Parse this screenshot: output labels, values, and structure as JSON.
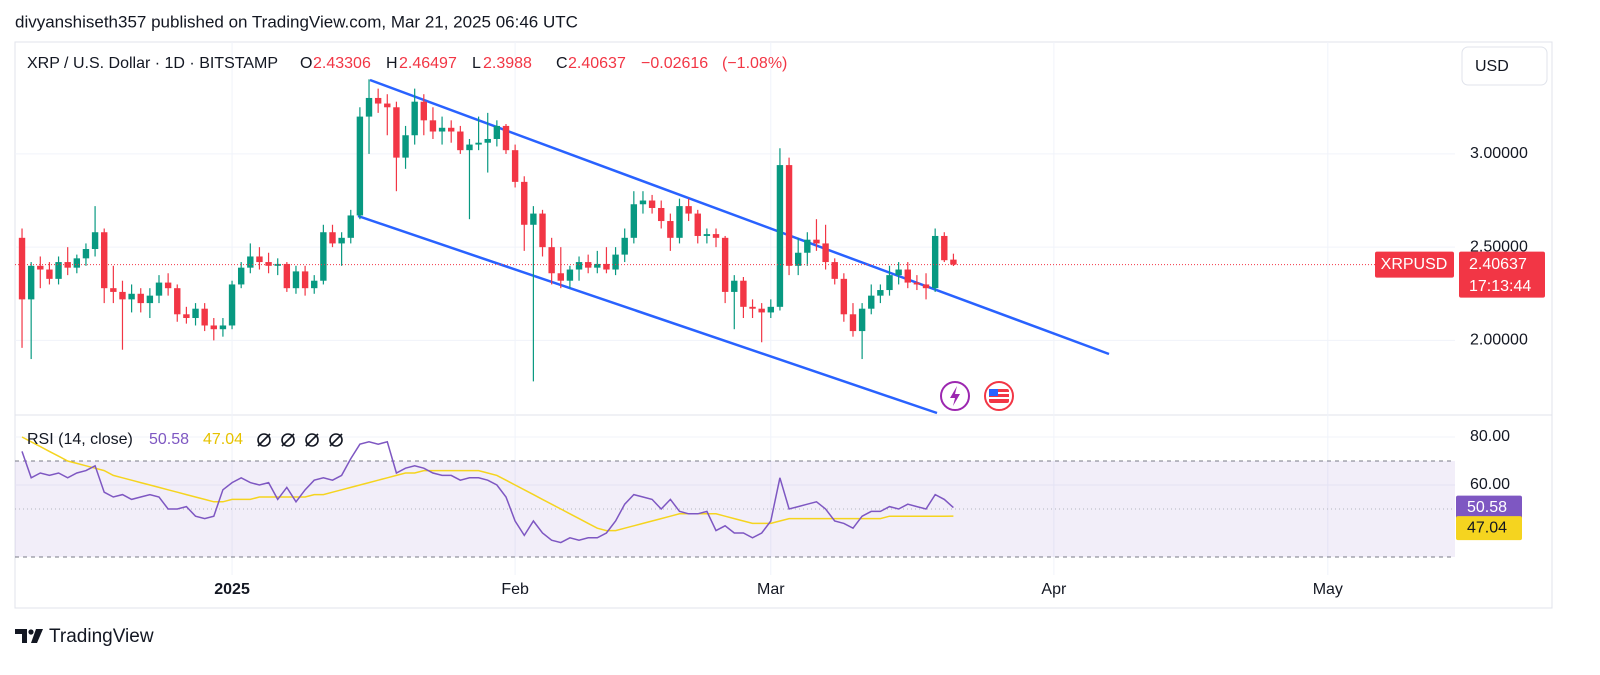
{
  "header": "divyanshiseth357 published on TradingView.com, Mar 21, 2025 06:46 UTC",
  "footer": "TradingView",
  "chart_data": {
    "type": "candlestick",
    "title": "XRP / U.S. Dollar · 1D · BITSTAMP",
    "ohlc_labels": [
      "O",
      "H",
      "L",
      "C"
    ],
    "change": {
      "value": -0.02616,
      "label": "−0.02616"
    },
    "change_percent": {
      "value": -1.08,
      "label": "(−1.08%)"
    },
    "currency": "USD",
    "symbol": "XRPUSD",
    "countdown": "17:13:44",
    "up_color": "#089981",
    "down_color": "#f23645",
    "open": [
      2.55,
      2.22,
      2.4,
      2.38,
      2.33,
      2.42,
      2.39,
      2.44,
      2.49,
      2.58,
      2.28,
      2.26,
      2.22,
      2.25,
      2.2,
      2.24,
      2.31,
      2.28,
      2.14,
      2.12,
      2.17,
      2.08,
      2.06,
      2.08,
      2.3,
      2.39,
      2.45,
      2.42,
      2.4,
      2.41,
      2.28,
      2.37,
      2.28,
      2.32,
      2.58,
      2.52,
      2.55,
      2.67,
      3.2,
      3.3,
      3.27,
      3.25,
      2.98,
      3.1,
      3.28,
      3.18,
      3.12,
      3.14,
      3.12,
      3.02,
      3.05,
      3.06,
      3.08,
      3.15,
      3.02,
      2.85,
      2.62,
      2.68,
      2.5,
      2.36,
      2.32,
      2.38,
      2.42,
      2.39,
      2.41,
      2.38,
      2.46,
      2.55,
      2.73,
      2.75,
      2.71,
      2.64,
      2.55,
      2.72,
      2.68,
      2.56,
      2.57,
      2.55,
      2.26,
      2.32,
      2.18,
      2.17,
      2.15,
      2.18,
      2.94,
      2.4,
      2.47,
      2.54,
      2.52,
      2.42,
      2.33,
      2.14,
      2.05,
      2.17,
      2.24,
      2.27,
      2.35,
      2.38,
      2.31,
      2.3,
      2.28,
      2.56,
      2.43306
    ],
    "high": [
      2.6,
      2.42,
      2.45,
      2.42,
      2.45,
      2.5,
      2.46,
      2.52,
      2.72,
      2.6,
      2.4,
      2.32,
      2.3,
      2.28,
      2.28,
      2.35,
      2.36,
      2.3,
      2.18,
      2.2,
      2.2,
      2.12,
      2.12,
      2.32,
      2.42,
      2.52,
      2.5,
      2.47,
      2.44,
      2.42,
      2.4,
      2.4,
      2.35,
      2.62,
      2.62,
      2.58,
      2.7,
      3.25,
      3.4,
      3.35,
      3.32,
      3.28,
      3.15,
      3.35,
      3.32,
      3.25,
      3.2,
      3.18,
      3.15,
      3.08,
      3.2,
      3.22,
      3.18,
      3.16,
      3.05,
      2.88,
      2.72,
      2.7,
      2.55,
      2.5,
      2.4,
      2.45,
      2.46,
      2.48,
      2.5,
      2.5,
      2.6,
      2.8,
      2.8,
      2.78,
      2.75,
      2.68,
      2.76,
      2.76,
      2.7,
      2.6,
      2.6,
      2.56,
      2.35,
      2.34,
      2.22,
      2.2,
      2.22,
      3.03,
      2.98,
      2.55,
      2.58,
      2.65,
      2.62,
      2.44,
      2.36,
      2.2,
      2.2,
      2.3,
      2.3,
      2.4,
      2.42,
      2.42,
      2.35,
      2.36,
      2.6,
      2.58,
      2.46497
    ],
    "low": [
      1.96,
      1.9,
      2.28,
      2.3,
      2.3,
      2.35,
      2.36,
      2.4,
      2.45,
      2.2,
      2.2,
      1.95,
      2.15,
      2.15,
      2.12,
      2.2,
      2.24,
      2.1,
      2.09,
      2.08,
      2.05,
      2.0,
      2.02,
      2.06,
      2.28,
      2.36,
      2.38,
      2.36,
      2.35,
      2.26,
      2.25,
      2.24,
      2.25,
      2.3,
      2.5,
      2.4,
      2.52,
      2.65,
      3.0,
      3.22,
      3.1,
      2.8,
      2.92,
      3.05,
      3.1,
      3.08,
      3.05,
      3.06,
      3.0,
      2.65,
      3.02,
      2.9,
      3.04,
      3.0,
      2.82,
      2.48,
      1.78,
      2.45,
      2.3,
      2.28,
      2.28,
      2.32,
      2.36,
      2.36,
      2.36,
      2.35,
      2.42,
      2.52,
      2.68,
      2.68,
      2.6,
      2.48,
      2.52,
      2.64,
      2.52,
      2.52,
      2.5,
      2.2,
      2.06,
      2.12,
      2.12,
      1.99,
      2.12,
      2.16,
      2.35,
      2.35,
      2.4,
      2.48,
      2.38,
      2.3,
      2.1,
      2.02,
      1.9,
      2.14,
      2.2,
      2.24,
      2.3,
      2.28,
      2.27,
      2.22,
      2.26,
      2.42,
      2.3988
    ],
    "close": [
      2.22,
      2.4,
      2.38,
      2.33,
      2.42,
      2.39,
      2.44,
      2.49,
      2.58,
      2.28,
      2.26,
      2.22,
      2.25,
      2.2,
      2.24,
      2.31,
      2.28,
      2.14,
      2.12,
      2.17,
      2.08,
      2.06,
      2.08,
      2.3,
      2.39,
      2.45,
      2.42,
      2.4,
      2.41,
      2.28,
      2.37,
      2.28,
      2.32,
      2.58,
      2.52,
      2.55,
      2.67,
      3.2,
      3.3,
      3.27,
      3.25,
      2.98,
      3.1,
      3.28,
      3.18,
      3.12,
      3.14,
      3.12,
      3.02,
      3.05,
      3.06,
      3.08,
      3.15,
      3.02,
      2.85,
      2.62,
      2.68,
      2.5,
      2.36,
      2.32,
      2.38,
      2.42,
      2.39,
      2.41,
      2.38,
      2.46,
      2.55,
      2.73,
      2.75,
      2.71,
      2.64,
      2.55,
      2.72,
      2.68,
      2.56,
      2.57,
      2.55,
      2.26,
      2.32,
      2.18,
      2.17,
      2.15,
      2.18,
      2.94,
      2.4,
      2.47,
      2.54,
      2.52,
      2.42,
      2.33,
      2.14,
      2.05,
      2.17,
      2.24,
      2.27,
      2.35,
      2.38,
      2.31,
      2.3,
      2.28,
      2.56,
      2.43,
      2.40637
    ],
    "xlim": [
      -0.77,
      156.6
    ],
    "xticks": [
      {
        "value": 23,
        "label": "2025"
      },
      {
        "value": 54,
        "label": "Feb"
      },
      {
        "value": 82,
        "label": "Mar"
      },
      {
        "value": 113,
        "label": "Apr"
      },
      {
        "value": 143,
        "label": "May"
      }
    ],
    "ylim": [
      1.6,
      3.6
    ],
    "yticks": [
      {
        "value": 2,
        "label": "2.00000"
      },
      {
        "value": 2.5,
        "label": "2.50000"
      },
      {
        "value": 3,
        "label": "3.00000"
      }
    ],
    "grid": true,
    "rsi": {
      "title": "RSI (14, close)",
      "color": "#7e57c2",
      "ma_color": "#f5d41f",
      "values": [
        74,
        63,
        65,
        64,
        65,
        63,
        65,
        66,
        68,
        57,
        55,
        56,
        54,
        55,
        56,
        55,
        50,
        50,
        51,
        47,
        46,
        47,
        58,
        61,
        63,
        61,
        60,
        61,
        54,
        59,
        53,
        58,
        62,
        63,
        62,
        64,
        71,
        77,
        78,
        77,
        78,
        65,
        67,
        68,
        67,
        65,
        64,
        64,
        62,
        63,
        63,
        62,
        60,
        55,
        45,
        39,
        45,
        40,
        37,
        36,
        38,
        37,
        38,
        38,
        40,
        45,
        52,
        56,
        55,
        54,
        50,
        54,
        49,
        48,
        48,
        49,
        41,
        43,
        40,
        40,
        38,
        40,
        45,
        63,
        50,
        51,
        52,
        53,
        50,
        45,
        44,
        42,
        47,
        49,
        49,
        51,
        50,
        52,
        51,
        50,
        56,
        54,
        50.58
      ],
      "ma": [
        80,
        78,
        76,
        74,
        72,
        70,
        69,
        68,
        67,
        66,
        64,
        63,
        62,
        61,
        60,
        59,
        58,
        57,
        56,
        55,
        54,
        53,
        53,
        54,
        54,
        54,
        55,
        55,
        55,
        55,
        55,
        55,
        56,
        56,
        57,
        58,
        59,
        60,
        61,
        62,
        63,
        64,
        65,
        65,
        66,
        66,
        66,
        66,
        66,
        66,
        66,
        65,
        64,
        62,
        60,
        58,
        56,
        54,
        52,
        50,
        48,
        46,
        44,
        42,
        41,
        41,
        42,
        43,
        44,
        45,
        46,
        47,
        48,
        48,
        48,
        48,
        48,
        47,
        46,
        45,
        44,
        44,
        44,
        45,
        46,
        46,
        46,
        46,
        46,
        46,
        46,
        46,
        46,
        46,
        46,
        47,
        47,
        47,
        47,
        47,
        47,
        47,
        47.04
      ],
      "ylim": [
        22.5,
        88.75
      ],
      "yticks": [
        {
          "value": 60,
          "label": "60.00"
        },
        {
          "value": 80,
          "label": "80.00"
        }
      ],
      "upper_band": 70,
      "lower_band": 30,
      "middle_line": 50
    }
  }
}
